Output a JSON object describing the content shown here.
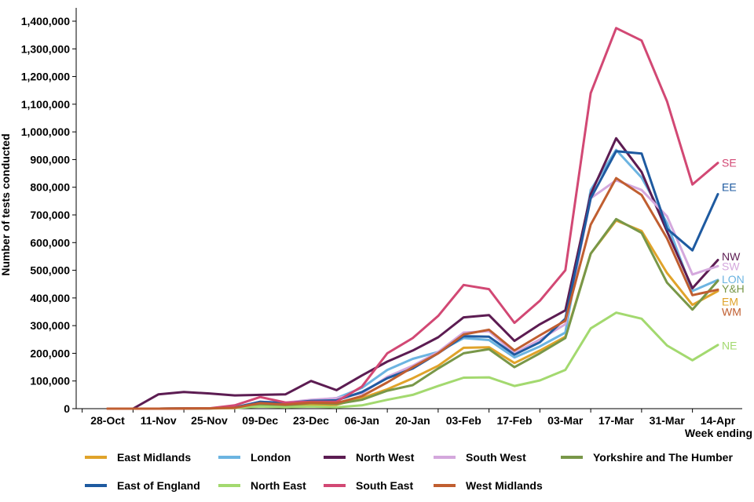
{
  "chart_data": {
    "type": "line",
    "xlabel": "Week ending",
    "ylabel": "Number of tests conducted",
    "ylim": [
      0,
      1400000
    ],
    "yticks": [
      0,
      100000,
      200000,
      300000,
      400000,
      500000,
      600000,
      700000,
      800000,
      900000,
      1000000,
      1100000,
      1200000,
      1300000,
      1400000
    ],
    "ytick_labels": [
      "0",
      "100,000",
      "200,000",
      "300,000",
      "400,000",
      "500,000",
      "600,000",
      "700,000",
      "800,000",
      "900,000",
      "1,000,000",
      "1,100,000",
      "1,200,000",
      "1,300,000",
      "1,400,000"
    ],
    "x": [
      "28-Oct",
      "04-Nov",
      "11-Nov",
      "18-Nov",
      "25-Nov",
      "02-Dec",
      "09-Dec",
      "16-Dec",
      "23-Dec",
      "30-Dec",
      "06-Jan",
      "13-Jan",
      "20-Jan",
      "27-Jan",
      "03-Feb",
      "10-Feb",
      "17-Feb",
      "24-Feb",
      "03-Mar",
      "10-Mar",
      "17-Mar",
      "24-Mar",
      "31-Mar",
      "07-Apr",
      "14-Apr"
    ],
    "xtick_labels": [
      "28-Oct",
      "11-Nov",
      "25-Nov",
      "09-Dec",
      "23-Dec",
      "06-Jan",
      "20-Jan",
      "03-Feb",
      "17-Feb",
      "03-Mar",
      "17-Mar",
      "31-Mar",
      "14-Apr"
    ],
    "grid": false,
    "legend_position": "bottom",
    "series": [
      {
        "name": "East Midlands",
        "abbr": "EM",
        "color": "#E0A32A",
        "values": [
          0,
          0,
          0,
          500,
          1000,
          2000,
          15000,
          10000,
          15000,
          14000,
          38000,
          70000,
          110000,
          155000,
          220000,
          222000,
          165000,
          210000,
          260000,
          560000,
          680000,
          642000,
          490000,
          375000,
          425000
        ]
      },
      {
        "name": "London",
        "abbr": "LON",
        "color": "#6CB4E1",
        "values": [
          0,
          0,
          0,
          500,
          1000,
          5000,
          25000,
          20000,
          30000,
          38000,
          75000,
          140000,
          180000,
          205000,
          255000,
          248000,
          185000,
          225000,
          275000,
          790000,
          935000,
          835000,
          670000,
          425000,
          465000
        ]
      },
      {
        "name": "North West",
        "abbr": "NW",
        "color": "#5C1C52",
        "values": [
          0,
          0,
          52000,
          60000,
          55000,
          48000,
          50000,
          52000,
          100000,
          67000,
          120000,
          170000,
          210000,
          258000,
          330000,
          338000,
          245000,
          305000,
          355000,
          775000,
          977000,
          855000,
          640000,
          435000,
          537000
        ]
      },
      {
        "name": "South West",
        "abbr": "SW",
        "color": "#D4A8DD",
        "values": [
          0,
          0,
          0,
          500,
          1000,
          4000,
          25000,
          22000,
          32000,
          38000,
          55000,
          115000,
          155000,
          205000,
          275000,
          280000,
          200000,
          250000,
          305000,
          760000,
          825000,
          790000,
          695000,
          485000,
          515000
        ]
      },
      {
        "name": "Yorkshire and The Humber",
        "abbr": "Y&H",
        "color": "#789748",
        "values": [
          0,
          0,
          0,
          500,
          1000,
          3000,
          15000,
          12000,
          20000,
          17000,
          32000,
          65000,
          85000,
          145000,
          200000,
          215000,
          150000,
          200000,
          255000,
          560000,
          685000,
          635000,
          455000,
          358000,
          462000
        ]
      },
      {
        "name": "East of England",
        "abbr": "EE",
        "color": "#1E5AA0",
        "values": [
          0,
          0,
          0,
          500,
          1000,
          4000,
          25000,
          20000,
          28000,
          30000,
          60000,
          110000,
          145000,
          200000,
          262000,
          260000,
          195000,
          240000,
          325000,
          760000,
          930000,
          922000,
          650000,
          572000,
          775000
        ]
      },
      {
        "name": "North East",
        "abbr": "NE",
        "color": "#A3D96F",
        "values": [
          0,
          0,
          0,
          200,
          500,
          2000,
          8000,
          5000,
          8000,
          5000,
          12000,
          32000,
          50000,
          82000,
          112000,
          113000,
          82000,
          102000,
          140000,
          290000,
          347000,
          325000,
          228000,
          175000,
          230000
        ]
      },
      {
        "name": "South East",
        "abbr": "SE",
        "color": "#D24874",
        "values": [
          0,
          0,
          0,
          500,
          1000,
          12000,
          42000,
          22000,
          25000,
          25000,
          80000,
          200000,
          255000,
          335000,
          447000,
          432000,
          310000,
          390000,
          500000,
          1140000,
          1375000,
          1330000,
          1110000,
          810000,
          888000
        ]
      },
      {
        "name": "West Midlands",
        "abbr": "WM",
        "color": "#C05E30",
        "values": [
          0,
          0,
          0,
          500,
          1000,
          3000,
          20000,
          15000,
          22000,
          20000,
          45000,
          95000,
          150000,
          200000,
          268000,
          285000,
          210000,
          265000,
          318000,
          665000,
          833000,
          772000,
          615000,
          410000,
          430000
        ]
      }
    ],
    "end_labels": [
      {
        "abbr": "SE",
        "color": "#D24874",
        "value": 888000
      },
      {
        "abbr": "EE",
        "color": "#1E5AA0",
        "value": 800000
      },
      {
        "abbr": "NW",
        "color": "#5C1C52",
        "value": 550000
      },
      {
        "abbr": "SW",
        "color": "#D4A8DD",
        "value": 515000
      },
      {
        "abbr": "LON",
        "color": "#6CB4E1",
        "value": 467000
      },
      {
        "abbr": "Y&H",
        "color": "#789748",
        "value": 433000
      },
      {
        "abbr": "EM",
        "color": "#E0A32A",
        "value": 387000
      },
      {
        "abbr": "WM",
        "color": "#C05E30",
        "value": 350000
      },
      {
        "abbr": "NE",
        "color": "#A3D96F",
        "value": 228000
      }
    ],
    "legend": [
      {
        "name": "East Midlands",
        "color": "#E0A32A"
      },
      {
        "name": "London",
        "color": "#6CB4E1"
      },
      {
        "name": "North West",
        "color": "#5C1C52"
      },
      {
        "name": "South West",
        "color": "#D4A8DD"
      },
      {
        "name": "Yorkshire and The Humber",
        "color": "#789748"
      },
      {
        "name": "East of England",
        "color": "#1E5AA0"
      },
      {
        "name": "North East",
        "color": "#A3D96F"
      },
      {
        "name": "South East",
        "color": "#D24874"
      },
      {
        "name": "West Midlands",
        "color": "#C05E30"
      }
    ]
  }
}
